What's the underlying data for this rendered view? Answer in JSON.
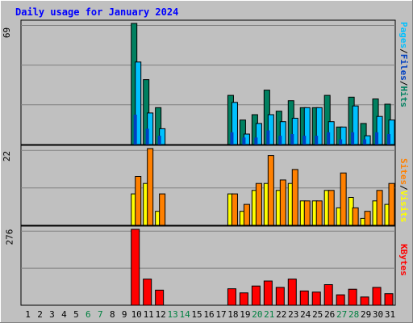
{
  "chart_data": {
    "type": "bar",
    "title": "Daily usage for January 2024",
    "categories": [
      "1",
      "2",
      "3",
      "4",
      "5",
      "6",
      "7",
      "8",
      "9",
      "10",
      "11",
      "12",
      "13",
      "14",
      "15",
      "16",
      "17",
      "18",
      "19",
      "20",
      "21",
      "22",
      "23",
      "24",
      "25",
      "26",
      "27",
      "28",
      "29",
      "30",
      "31"
    ],
    "weekend_days": [
      6,
      7,
      13,
      14,
      20,
      21,
      27,
      28
    ],
    "panels": [
      {
        "name": "hits",
        "ymax_label": "69",
        "ymax": 69,
        "legend": [
          {
            "text": "Pages",
            "color": "#00c0ff"
          },
          {
            "text": "/",
            "color": "#000000"
          },
          {
            "text": "Files",
            "color": "#0040c0"
          },
          {
            "text": "/",
            "color": "#000000"
          },
          {
            "text": "Hits",
            "color": "#008060"
          }
        ],
        "series": [
          {
            "name": "Hits",
            "color": "#008060",
            "values": [
              0,
              0,
              0,
              0,
              0,
              0,
              0,
              0,
              0,
              69,
              37,
              21,
              0,
              0,
              0,
              0,
              0,
              28,
              14,
              17,
              31,
              19,
              25,
              21,
              21,
              28,
              10,
              27,
              12,
              26,
              23
            ]
          },
          {
            "name": "Files",
            "color": "#0040c0",
            "values": [
              0,
              0,
              0,
              0,
              0,
              0,
              0,
              0,
              0,
              17,
              9,
              5,
              0,
              0,
              0,
              0,
              0,
              7,
              4,
              4,
              8,
              5,
              6,
              5,
              5,
              7,
              3,
              7,
              3,
              7,
              6
            ]
          },
          {
            "name": "Pages",
            "color": "#00c0ff",
            "values": [
              0,
              0,
              0,
              0,
              0,
              0,
              0,
              0,
              0,
              47,
              18,
              9,
              0,
              0,
              0,
              0,
              0,
              24,
              6,
              12,
              17,
              13,
              15,
              21,
              21,
              13,
              10,
              22,
              5,
              16,
              14
            ]
          }
        ]
      },
      {
        "name": "visits",
        "ymax_label": "22",
        "ymax": 22,
        "legend": [
          {
            "text": "Sites",
            "color": "#ff8000"
          },
          {
            "text": "/",
            "color": "#000000"
          },
          {
            "text": "Visits",
            "color": "#ffff00"
          }
        ],
        "series": [
          {
            "name": "Visits",
            "color": "#ffff00",
            "values": [
              0,
              0,
              0,
              0,
              0,
              0,
              0,
              0,
              0,
              9,
              12,
              4,
              0,
              0,
              0,
              0,
              0,
              9,
              4,
              10,
              12,
              10,
              12,
              7,
              7,
              10,
              5,
              8,
              2,
              7,
              6
            ]
          },
          {
            "name": "Sites",
            "color": "#ff8000",
            "values": [
              0,
              0,
              0,
              0,
              0,
              0,
              0,
              0,
              0,
              14,
              22,
              9,
              0,
              0,
              0,
              0,
              0,
              9,
              6,
              12,
              20,
              13,
              16,
              7,
              7,
              10,
              15,
              5,
              4,
              10,
              12
            ]
          }
        ]
      },
      {
        "name": "kbytes",
        "ymax_label": "276",
        "ymax": 276,
        "legend": [
          {
            "text": "KBytes",
            "color": "#ff0000"
          }
        ],
        "series": [
          {
            "name": "KBytes",
            "color": "#ff0000",
            "values": [
              0,
              0,
              0,
              0,
              0,
              0,
              0,
              0,
              0,
              276,
              95,
              55,
              0,
              0,
              0,
              0,
              0,
              60,
              45,
              70,
              88,
              65,
              95,
              52,
              48,
              75,
              38,
              58,
              30,
              65,
              42
            ]
          }
        ]
      }
    ]
  }
}
